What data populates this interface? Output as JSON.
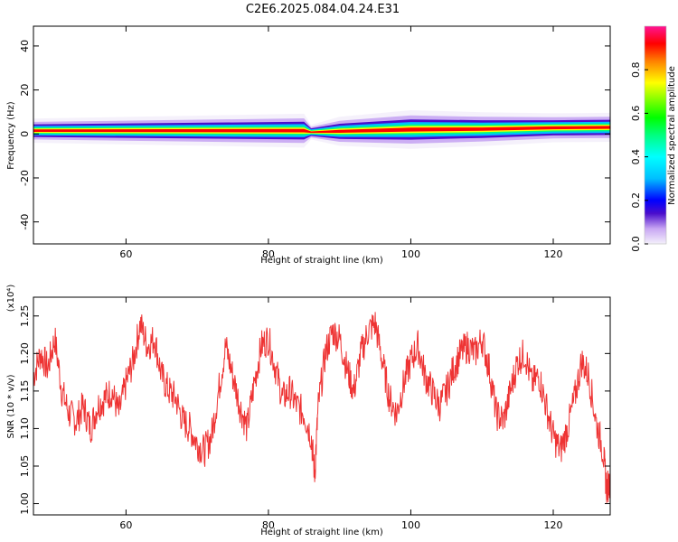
{
  "figure": {
    "title": "C2E6.2025.084.04.24.E31"
  },
  "chart_data": [
    {
      "type": "heatmap",
      "name": "spectrogram",
      "xlabel": "Height of straight line (km)",
      "ylabel": "Frequency (Hz)",
      "xlim": [
        47,
        128
      ],
      "ylim": [
        -50,
        49
      ],
      "xticks": [
        60,
        80,
        100,
        120
      ],
      "yticks": [
        40,
        20,
        0,
        -20,
        -40
      ],
      "xtick_labels": [
        "60",
        "80",
        "100",
        "120"
      ],
      "ytick_labels": [
        "40",
        "20",
        "0",
        "-20",
        "-40"
      ],
      "colorbar": {
        "label": "Normalized spectral amplitude",
        "range": [
          0,
          1
        ],
        "ticks": [
          0.0,
          0.2,
          0.4,
          0.6,
          0.8
        ],
        "tick_labels": [
          "0.0",
          "0.2",
          "0.4",
          "0.6",
          "0.8"
        ],
        "colormap": [
          "#f4f0fb",
          "#c8a6f3",
          "#4a0dcc",
          "#0000ff",
          "#00bfff",
          "#00ffff",
          "#00ff7f",
          "#00ff00",
          "#7fff00",
          "#ffff00",
          "#ff8000",
          "#ff0000",
          "#ff1493"
        ]
      },
      "ridge": [
        {
          "x": 47,
          "y": 1.5,
          "halfwidth": 2.5
        },
        {
          "x": 85,
          "y": 1.5,
          "halfwidth": 3.5
        },
        {
          "x": 86,
          "y": 0.8,
          "halfwidth": 1.5
        },
        {
          "x": 90,
          "y": 1.2,
          "halfwidth": 3.0
        },
        {
          "x": 100,
          "y": 2.0,
          "halfwidth": 4.0
        },
        {
          "x": 110,
          "y": 2.2,
          "halfwidth": 3.5
        },
        {
          "x": 120,
          "y": 2.8,
          "halfwidth": 3.0
        },
        {
          "x": 128,
          "y": 3.0,
          "halfwidth": 3.0
        }
      ]
    },
    {
      "type": "line",
      "name": "snr",
      "xlabel": "Height of straight line (km)",
      "ylabel": "SNR (10 * v/v)",
      "y_multiplier_label": "(x10⁴)",
      "xlim": [
        47,
        128
      ],
      "ylim": [
        0.985,
        1.275
      ],
      "xticks": [
        60,
        80,
        100,
        120
      ],
      "yticks": [
        1.0,
        1.05,
        1.1,
        1.15,
        1.2,
        1.25
      ],
      "xtick_labels": [
        "60",
        "80",
        "100",
        "120"
      ],
      "ytick_labels": [
        "1.00",
        "1.05",
        "1.10",
        "1.15",
        "1.20",
        "1.25"
      ],
      "line_color": "#ee3333",
      "x": [
        47,
        48,
        49,
        50,
        51,
        52,
        53,
        54,
        55,
        56,
        57,
        58,
        59,
        60,
        61,
        62,
        63,
        64,
        65,
        66,
        67,
        68,
        69,
        70,
        71,
        72,
        73,
        74,
        75,
        76,
        77,
        78,
        79,
        80,
        81,
        82,
        83,
        84,
        85,
        86,
        86.5,
        87,
        88,
        89,
        90,
        91,
        92,
        93,
        94,
        95,
        96,
        97,
        98,
        99,
        100,
        101,
        102,
        103,
        104,
        105,
        106,
        107,
        108,
        109,
        110,
        111,
        112,
        113,
        114,
        115,
        116,
        117,
        118,
        119,
        120,
        121,
        122,
        123,
        124,
        125,
        126,
        127,
        127.5,
        128
      ],
      "y": [
        1.17,
        1.2,
        1.18,
        1.22,
        1.15,
        1.12,
        1.11,
        1.13,
        1.1,
        1.13,
        1.14,
        1.15,
        1.12,
        1.16,
        1.19,
        1.24,
        1.21,
        1.22,
        1.17,
        1.15,
        1.14,
        1.11,
        1.1,
        1.08,
        1.07,
        1.09,
        1.15,
        1.21,
        1.17,
        1.13,
        1.1,
        1.16,
        1.21,
        1.22,
        1.18,
        1.14,
        1.15,
        1.13,
        1.12,
        1.09,
        1.04,
        1.13,
        1.2,
        1.23,
        1.22,
        1.18,
        1.15,
        1.2,
        1.23,
        1.24,
        1.19,
        1.14,
        1.12,
        1.16,
        1.19,
        1.21,
        1.17,
        1.15,
        1.13,
        1.15,
        1.18,
        1.2,
        1.21,
        1.2,
        1.22,
        1.18,
        1.12,
        1.11,
        1.15,
        1.19,
        1.2,
        1.16,
        1.17,
        1.13,
        1.09,
        1.07,
        1.1,
        1.14,
        1.19,
        1.17,
        1.11,
        1.07,
        1.02,
        1.03
      ]
    }
  ]
}
